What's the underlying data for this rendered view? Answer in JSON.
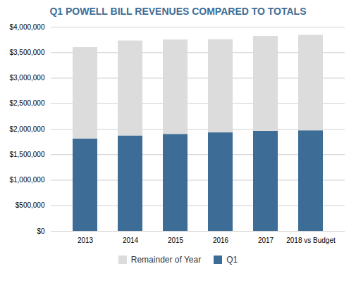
{
  "chart_data": {
    "type": "bar",
    "stacked": true,
    "title": "Q1 POWELL BILL REVENUES COMPARED TO TOTALS",
    "categories": [
      "2013",
      "2014",
      "2015",
      "2016",
      "2017",
      "2018 vs Budget"
    ],
    "series": [
      {
        "name": "Q1",
        "color": "#3d6d96",
        "values": [
          1810000,
          1870000,
          1900000,
          1930000,
          1960000,
          1970000
        ]
      },
      {
        "name": "Remainder of Year",
        "color": "#dcdcdc",
        "values": [
          1790000,
          1860000,
          1850000,
          1825000,
          1860000,
          1870000
        ]
      }
    ],
    "ylim": [
      0,
      4000000
    ],
    "yticks": [
      {
        "value": 0,
        "label": "$0"
      },
      {
        "value": 500000,
        "label": "$500,000"
      },
      {
        "value": 1000000,
        "label": "$1,000,000"
      },
      {
        "value": 1500000,
        "label": "$1,500,000"
      },
      {
        "value": 2000000,
        "label": "$2,000,000"
      },
      {
        "value": 2500000,
        "label": "$2,500,000"
      },
      {
        "value": 3000000,
        "label": "$3,000,000"
      },
      {
        "value": 3500000,
        "label": "$3,500,000"
      },
      {
        "value": 4000000,
        "label": "$4,000,000"
      }
    ],
    "grid": true,
    "legend": "bottom"
  }
}
